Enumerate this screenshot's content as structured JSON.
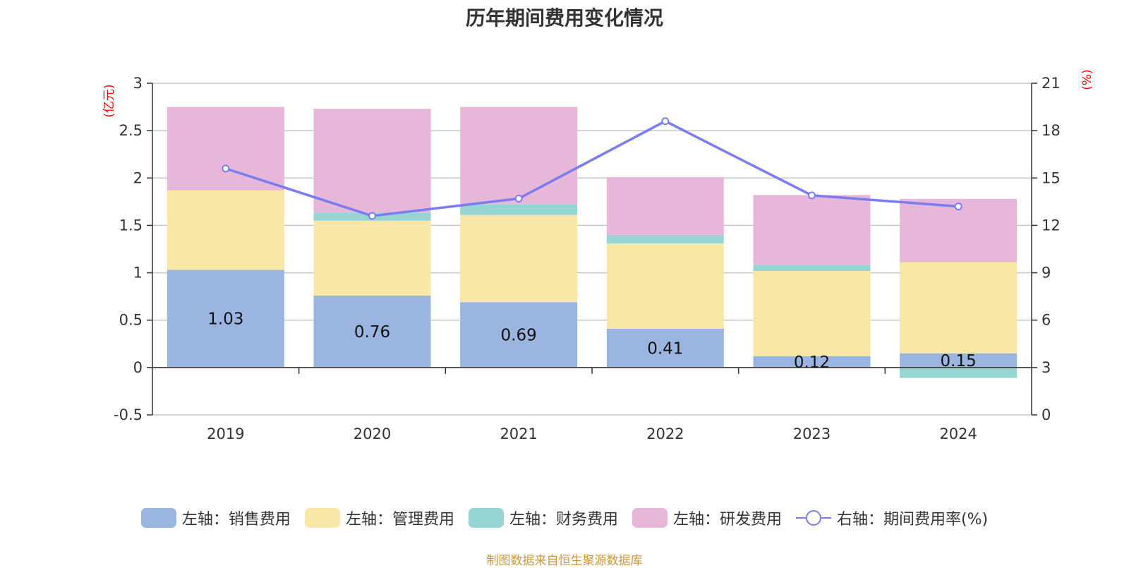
{
  "chart_data": {
    "type": "bar",
    "title": "历年期间费用变化情况",
    "categories": [
      "2019",
      "2020",
      "2021",
      "2022",
      "2023",
      "2024"
    ],
    "series": [
      {
        "name": "左轴：销售费用",
        "type": "bar",
        "axis": "left",
        "color": "#9ab6e0",
        "values": [
          1.03,
          0.76,
          0.69,
          0.41,
          0.12,
          0.15
        ]
      },
      {
        "name": "左轴：管理费用",
        "type": "bar",
        "axis": "left",
        "color": "#f8e7a7",
        "values": [
          0.84,
          0.79,
          0.92,
          0.9,
          0.9,
          0.96
        ]
      },
      {
        "name": "左轴：财务费用",
        "type": "bar",
        "axis": "left",
        "color": "#97d4d4",
        "values": [
          0.0,
          0.08,
          0.11,
          0.09,
          0.06,
          -0.11
        ]
      },
      {
        "name": "左轴：研发费用",
        "type": "bar",
        "axis": "left",
        "color": "#e7b7d9",
        "values": [
          0.88,
          1.1,
          1.03,
          0.61,
          0.74,
          0.67
        ]
      },
      {
        "name": "右轴：期间费用率(%)",
        "type": "line",
        "axis": "right",
        "color": "#7b7cf0",
        "values": [
          15.6,
          12.6,
          13.7,
          18.6,
          13.9,
          13.2
        ]
      }
    ],
    "left_axis": {
      "unit": "(亿元)",
      "min": -0.5,
      "max": 3,
      "ticks": [
        -0.5,
        0,
        0.5,
        1,
        1.5,
        2,
        2.5,
        3
      ],
      "tick_labels": [
        "-0.5",
        "0",
        "0.5",
        "1",
        "1.5",
        "2",
        "2.5",
        "3"
      ]
    },
    "right_axis": {
      "unit": "(%)",
      "min": 0,
      "max": 21,
      "ticks": [
        0,
        3,
        6,
        9,
        12,
        15,
        18,
        21
      ],
      "tick_labels": [
        "0",
        "3",
        "6",
        "9",
        "12",
        "15",
        "18",
        "21"
      ]
    },
    "data_labels": [
      "1.03",
      "0.76",
      "0.69",
      "0.41",
      "0.12",
      "0.15"
    ],
    "grid": true,
    "legend_position": "bottom"
  },
  "footer": "制图数据来自恒生聚源数据库"
}
